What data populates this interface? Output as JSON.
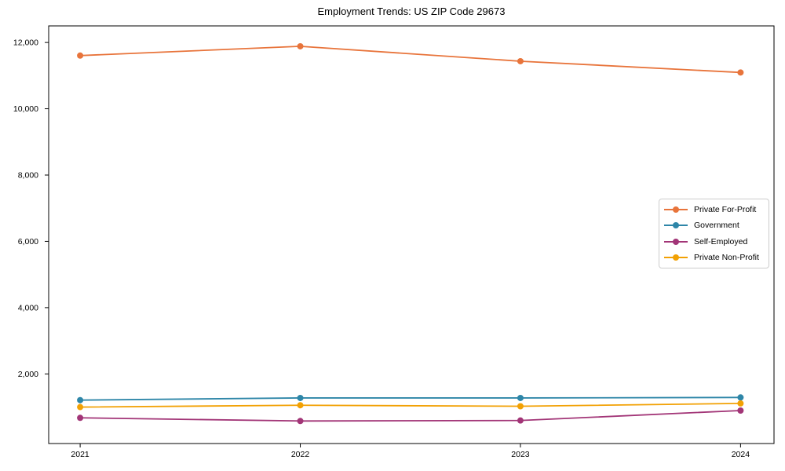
{
  "figure": {
    "background": "#ffffff",
    "text_color": "#000000",
    "axis_color": "#000000"
  },
  "chart_data": {
    "type": "line",
    "title": "Employment Trends: US ZIP Code 29673",
    "xlabel": "",
    "ylabel": "",
    "x": [
      2021,
      2022,
      2023,
      2024
    ],
    "x_tick_labels": [
      "2021",
      "2022",
      "2023",
      "2024"
    ],
    "series": [
      {
        "name": "Private For-Profit",
        "color": "#E8743B",
        "values": [
          11605,
          11885,
          11435,
          11095
        ]
      },
      {
        "name": "Government",
        "color": "#2E86A8",
        "values": [
          1210,
          1275,
          1275,
          1290
        ]
      },
      {
        "name": "Self-Employed",
        "color": "#A23577",
        "values": [
          675,
          580,
          595,
          895
        ]
      },
      {
        "name": "Private Non-Profit",
        "color": "#F2A104",
        "values": [
          1000,
          1055,
          1025,
          1110
        ]
      }
    ],
    "yticks": {
      "values": [
        2000,
        4000,
        6000,
        8000,
        10000,
        12000
      ],
      "labels": [
        "2,000",
        "4,000",
        "6,000",
        "8,000",
        "10,000",
        "12,000"
      ]
    },
    "ylim": [
      -100,
      12500
    ],
    "xlim": [
      2020.857,
      2024.152
    ],
    "grid": false,
    "marker": "circle",
    "legend": {
      "position": "center-right",
      "border_color": "#cccccc",
      "background": "#ffffff"
    }
  }
}
